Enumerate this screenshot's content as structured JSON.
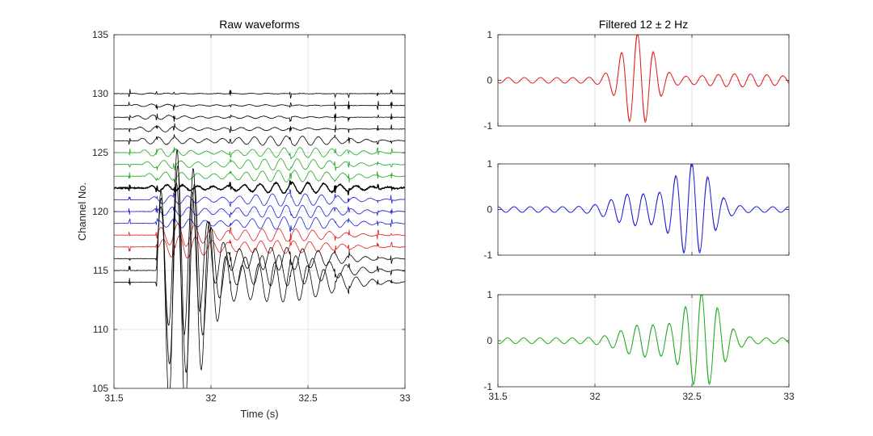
{
  "figure": {
    "colors": {
      "black": "#000000",
      "green": "#22aa22",
      "blue": "#1f1fd6",
      "red": "#e02020"
    }
  },
  "chart_data": [
    {
      "type": "line",
      "title": "Raw waveforms",
      "xlabel": "Time (s)",
      "ylabel": "Channel No.",
      "xlim": [
        31.5,
        33
      ],
      "ylim": [
        105,
        135
      ],
      "xticks": [
        31.5,
        32,
        32.5,
        33
      ],
      "xtick_labels": [
        "31.5",
        "32",
        "32.5",
        "33"
      ],
      "yticks": [
        105,
        110,
        115,
        120,
        125,
        130,
        135
      ],
      "ytick_labels": [
        "105",
        "110",
        "115",
        "120",
        "125",
        "130",
        "135"
      ],
      "grid": true,
      "series": [
        {
          "channel": 130,
          "color": "black"
        },
        {
          "channel": 129,
          "color": "black"
        },
        {
          "channel": 128,
          "color": "black"
        },
        {
          "channel": 127,
          "color": "black"
        },
        {
          "channel": 126,
          "color": "black"
        },
        {
          "channel": 125,
          "color": "green"
        },
        {
          "channel": 124,
          "color": "green"
        },
        {
          "channel": 123,
          "color": "green"
        },
        {
          "channel": 122,
          "color": "black"
        },
        {
          "channel": 121,
          "color": "blue"
        },
        {
          "channel": 120,
          "color": "blue"
        },
        {
          "channel": 119,
          "color": "blue"
        },
        {
          "channel": 118,
          "color": "red"
        },
        {
          "channel": 117,
          "color": "red"
        },
        {
          "channel": 116,
          "color": "black"
        },
        {
          "channel": 115,
          "color": "black"
        },
        {
          "channel": 114,
          "color": "black"
        }
      ]
    },
    {
      "type": "line",
      "title": "Filtered 12 ± 2 Hz",
      "xlim": [
        31.5,
        33
      ],
      "ylim": [
        -1,
        1
      ],
      "xticks": [
        31.5,
        32,
        32.5,
        33
      ],
      "xtick_labels": [],
      "yticks": [
        -1,
        0,
        1
      ],
      "ytick_labels": [
        "-1",
        "0",
        "1"
      ],
      "grid": true,
      "series": [
        {
          "color": "red",
          "peak_time": 32.22
        }
      ]
    },
    {
      "type": "line",
      "title": "",
      "xlim": [
        31.5,
        33
      ],
      "ylim": [
        -1,
        1
      ],
      "xticks": [
        31.5,
        32,
        32.5,
        33
      ],
      "xtick_labels": [],
      "yticks": [
        -1,
        0,
        1
      ],
      "ytick_labels": [
        "-1",
        "0",
        "1"
      ],
      "grid": true,
      "series": [
        {
          "color": "blue",
          "peak_time": 32.5
        }
      ]
    },
    {
      "type": "line",
      "title": "",
      "xlim": [
        31.5,
        33
      ],
      "ylim": [
        -1,
        1
      ],
      "xticks": [
        31.5,
        32,
        32.5,
        33
      ],
      "xtick_labels": [
        "31.5",
        "32",
        "32.5",
        "33"
      ],
      "yticks": [
        -1,
        0,
        1
      ],
      "ytick_labels": [
        "-1",
        "0",
        "1"
      ],
      "grid": true,
      "series": [
        {
          "color": "green",
          "peak_time": 32.55
        }
      ]
    }
  ]
}
